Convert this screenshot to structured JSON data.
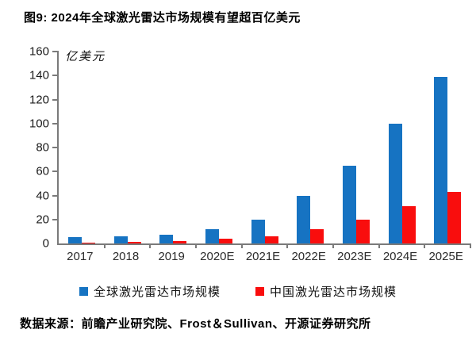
{
  "title": "图9: 2024年全球激光雷达市场规模有望超百亿美元",
  "source": "数据来源：前瞻产业研究院、Frost＆Sullivan、开源证券研究所",
  "chart_data": {
    "type": "bar",
    "title": "2024年全球激光雷达市场规模有望超百亿美元",
    "unit_label": "亿美元",
    "categories": [
      "2017",
      "2018",
      "2019",
      "2020E",
      "2021E",
      "2022E",
      "2023E",
      "2024E",
      "2025E"
    ],
    "series": [
      {
        "name": "全球激光雷达市场规模",
        "color": "#1673C2",
        "values": [
          5,
          6,
          7,
          12,
          20,
          40,
          65,
          100,
          139
        ]
      },
      {
        "name": "中国激光雷达市场规模",
        "color": "#F90D0D",
        "values": [
          1,
          1.5,
          2,
          4,
          6,
          12,
          20,
          31,
          43
        ]
      }
    ],
    "xlabel": "",
    "ylabel": "亿美元",
    "ylim": [
      0,
      160
    ],
    "ytick_step": 20,
    "grid": false,
    "legend_position": "bottom",
    "axis_color": "#7a7a7a"
  }
}
